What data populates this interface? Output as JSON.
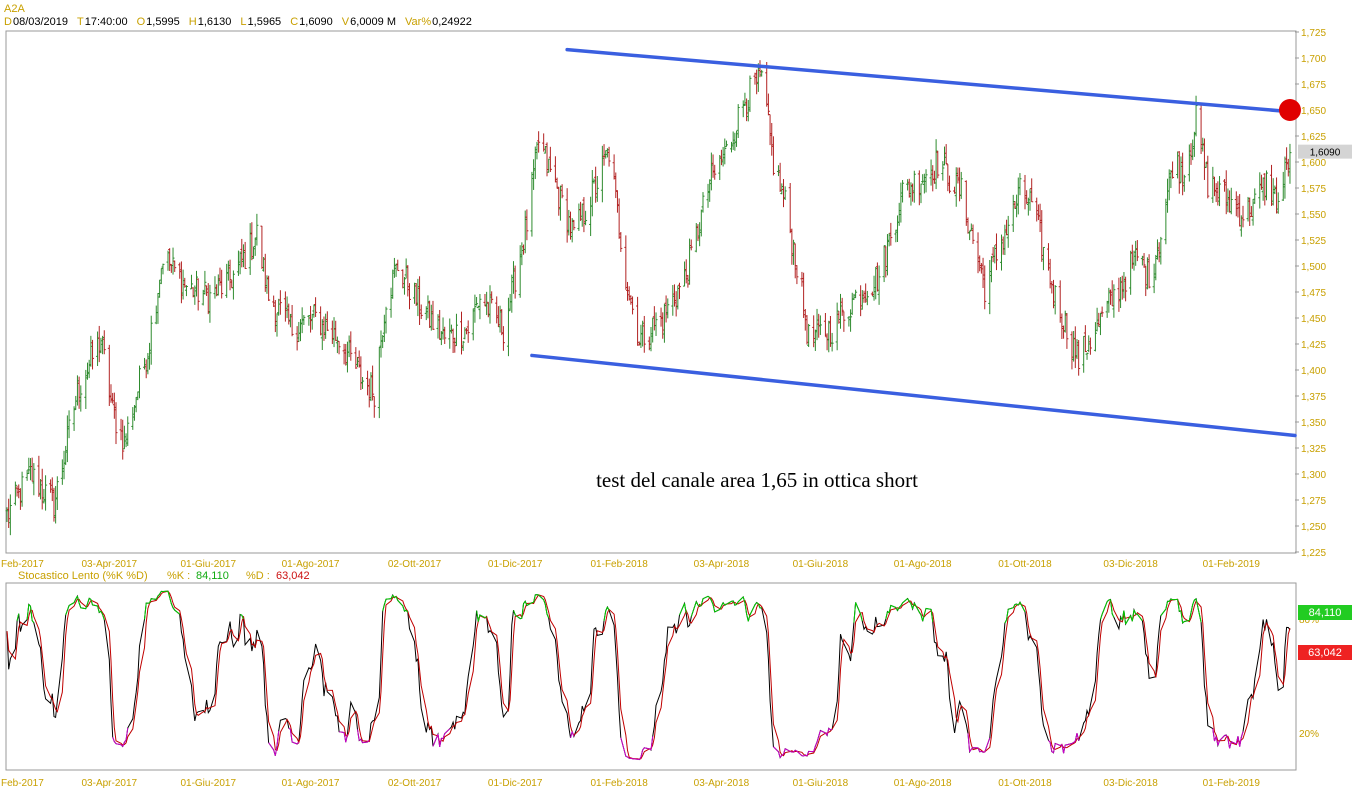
{
  "header": {
    "symbol": "A2A",
    "fields": [
      {
        "key": "D",
        "value": "08/03/2019"
      },
      {
        "key": "T",
        "value": "17:40:00"
      },
      {
        "key": "O",
        "value": "1,5995"
      },
      {
        "key": "H",
        "value": "1,6130"
      },
      {
        "key": "L",
        "value": "1,5965"
      },
      {
        "key": "C",
        "value": "1,6090"
      },
      {
        "key": "V",
        "value": "6,0009 M"
      },
      {
        "key": "Var%",
        "value": "0,24922"
      }
    ]
  },
  "colors": {
    "axis_label": "#c8a000",
    "bar_up": "#2e8b2e",
    "bar_down": "#b22222",
    "channel": "#3a5fe0",
    "target": "#e00000",
    "stoch_k": "#000000",
    "stoch_d": "#c00000",
    "stoch_over": "#00cc00",
    "stoch_under": "#cc00cc",
    "k_badge": "#22cc22",
    "d_badge": "#ee2222"
  },
  "chart_data": {
    "type": "bar",
    "price_panel": {
      "ylim": [
        1.225,
        1.725
      ],
      "yticks": [
        "1,225",
        "1,250",
        "1,275",
        "1,300",
        "1,325",
        "1,350",
        "1,375",
        "1,400",
        "1,425",
        "1,450",
        "1,475",
        "1,500",
        "1,525",
        "1,550",
        "1,575",
        "1,600",
        "1,625",
        "1,650",
        "1,675",
        "1,700",
        "1,725"
      ],
      "last_price_label": "1,6090",
      "last_price": 1.609,
      "channel_lines": [
        {
          "name": "upper",
          "start": [
            "2018-01-01",
            1.708
          ],
          "end": [
            "2019-03-11",
            1.648
          ]
        },
        {
          "name": "lower",
          "start": [
            "2017-12-11",
            1.414
          ],
          "end": [
            "2019-03-11",
            1.337
          ]
        }
      ],
      "target_point": [
        "2019-03-08",
        1.65
      ],
      "annotation": "test del canale area 1,65 in ottica short",
      "anchors": [
        [
          "2017-02-01",
          1.26
        ],
        [
          "2017-02-15",
          1.3
        ],
        [
          "2017-03-01",
          1.27
        ],
        [
          "2017-03-15",
          1.38
        ],
        [
          "2017-03-29",
          1.43
        ],
        [
          "2017-04-05",
          1.36
        ],
        [
          "2017-04-12",
          1.33
        ],
        [
          "2017-04-26",
          1.42
        ],
        [
          "2017-05-05",
          1.51
        ],
        [
          "2017-05-19",
          1.48
        ],
        [
          "2017-06-02",
          1.47
        ],
        [
          "2017-06-16",
          1.49
        ],
        [
          "2017-06-30",
          1.53
        ],
        [
          "2017-07-07",
          1.47
        ],
        [
          "2017-07-21",
          1.44
        ],
        [
          "2017-08-04",
          1.45
        ],
        [
          "2017-08-18",
          1.43
        ],
        [
          "2017-09-01",
          1.39
        ],
        [
          "2017-09-08",
          1.38
        ],
        [
          "2017-09-15",
          1.47
        ],
        [
          "2017-09-22",
          1.5
        ],
        [
          "2017-10-06",
          1.46
        ],
        [
          "2017-10-20",
          1.43
        ],
        [
          "2017-11-03",
          1.44
        ],
        [
          "2017-11-10",
          1.47
        ],
        [
          "2017-11-24",
          1.44
        ],
        [
          "2017-12-08",
          1.54
        ],
        [
          "2017-12-15",
          1.62
        ],
        [
          "2017-12-22",
          1.59
        ],
        [
          "2018-01-05",
          1.53
        ],
        [
          "2018-01-19",
          1.58
        ],
        [
          "2018-01-26",
          1.61
        ],
        [
          "2018-02-06",
          1.48
        ],
        [
          "2018-02-13",
          1.43
        ],
        [
          "2018-02-27",
          1.45
        ],
        [
          "2018-03-13",
          1.49
        ],
        [
          "2018-03-27",
          1.58
        ],
        [
          "2018-04-06",
          1.61
        ],
        [
          "2018-04-17",
          1.66
        ],
        [
          "2018-04-27",
          1.68
        ],
        [
          "2018-05-04",
          1.6
        ],
        [
          "2018-05-11",
          1.56
        ],
        [
          "2018-05-18",
          1.5
        ],
        [
          "2018-05-25",
          1.43
        ],
        [
          "2018-06-08",
          1.44
        ],
        [
          "2018-06-22",
          1.47
        ],
        [
          "2018-07-06",
          1.49
        ],
        [
          "2018-07-20",
          1.57
        ],
        [
          "2018-07-27",
          1.58
        ],
        [
          "2018-08-10",
          1.6
        ],
        [
          "2018-08-24",
          1.57
        ],
        [
          "2018-09-07",
          1.48
        ],
        [
          "2018-09-14",
          1.51
        ],
        [
          "2018-09-28",
          1.57
        ],
        [
          "2018-10-05",
          1.56
        ],
        [
          "2018-10-19",
          1.47
        ],
        [
          "2018-10-26",
          1.44
        ],
        [
          "2018-11-02",
          1.41
        ],
        [
          "2018-11-09",
          1.43
        ],
        [
          "2018-11-23",
          1.47
        ],
        [
          "2018-12-07",
          1.51
        ],
        [
          "2018-12-14",
          1.49
        ],
        [
          "2018-12-21",
          1.53
        ],
        [
          "2018-12-28",
          1.6
        ],
        [
          "2019-01-04",
          1.59
        ],
        [
          "2019-01-11",
          1.64
        ],
        [
          "2019-01-18",
          1.58
        ],
        [
          "2019-02-01",
          1.56
        ],
        [
          "2019-02-08",
          1.55
        ],
        [
          "2019-02-15",
          1.56
        ],
        [
          "2019-02-22",
          1.58
        ],
        [
          "2019-03-01",
          1.56
        ],
        [
          "2019-03-08",
          1.609
        ]
      ]
    },
    "stochastic_panel": {
      "title": "Stocastico Lento (%K %D)",
      "k_label": "%K :",
      "k_value": "84,110",
      "d_label": "%D :",
      "d_value": "63,042",
      "level_high": "80%",
      "level_low": "20%",
      "ylim": [
        0,
        100
      ]
    },
    "x_ticks": [
      "Feb-2017",
      "03-Apr-2017",
      "01-Giu-2017",
      "01-Ago-2017",
      "02-Ott-2017",
      "01-Dic-2017",
      "01-Feb-2018",
      "03-Apr-2018",
      "01-Giu-2018",
      "01-Ago-2018",
      "01-Ott-2018",
      "03-Dic-2018",
      "01-Feb-2019"
    ],
    "x_tick_dates": [
      "2017-02-01",
      "2017-04-03",
      "2017-06-01",
      "2017-08-01",
      "2017-10-02",
      "2017-12-01",
      "2018-02-01",
      "2018-04-03",
      "2018-06-01",
      "2018-08-01",
      "2018-10-01",
      "2018-12-03",
      "2019-02-01"
    ],
    "x_range": [
      "2017-02-01",
      "2019-03-11"
    ]
  }
}
